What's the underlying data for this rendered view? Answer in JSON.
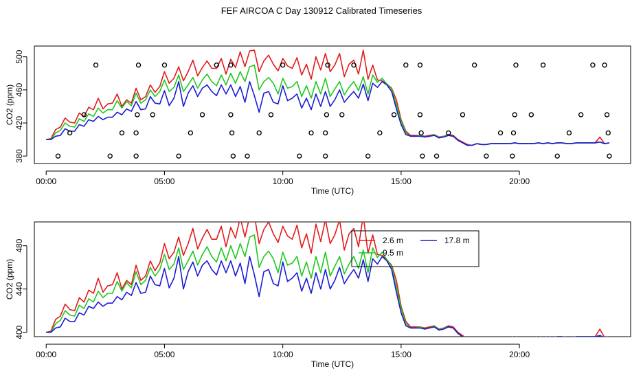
{
  "title": "FEF AIRCOA C  Day 130912  Calibrated Timeseries",
  "colors": {
    "series_2_6": "#e41a1c",
    "series_9_5": "#1ec81e",
    "series_17_8": "#1a1ad6",
    "axis": "#000000"
  },
  "chart_data": [
    {
      "type": "line",
      "panel": "top",
      "xlabel": "Time (UTC)",
      "ylabel": "CO2 (ppm)",
      "xlim": [
        -0.5,
        24.7
      ],
      "ylim": [
        371,
        513
      ],
      "xticks": [
        0,
        5,
        10,
        15,
        20
      ],
      "xtick_labels": [
        "00:00",
        "05:00",
        "10:00",
        "15:00",
        "20:00"
      ],
      "yticks": [
        380,
        420,
        460,
        500
      ],
      "ytick_labels": [
        "380",
        "420",
        "460",
        "500"
      ],
      "series_names": [
        "2.6 m",
        "9.5 m",
        "17.8 m"
      ],
      "flag_levels": [
        380,
        408,
        430,
        490
      ],
      "flags": [
        {
          "x": 0.5,
          "y": 380
        },
        {
          "x": 1.0,
          "y": 408
        },
        {
          "x": 1.6,
          "y": 430
        },
        {
          "x": 2.1,
          "y": 490
        },
        {
          "x": 2.7,
          "y": 380
        },
        {
          "x": 3.2,
          "y": 408
        },
        {
          "x": 3.8,
          "y": 380
        },
        {
          "x": 3.8,
          "y": 408
        },
        {
          "x": 3.85,
          "y": 430
        },
        {
          "x": 3.9,
          "y": 490
        },
        {
          "x": 4.5,
          "y": 430
        },
        {
          "x": 5.0,
          "y": 490
        },
        {
          "x": 5.6,
          "y": 380
        },
        {
          "x": 6.1,
          "y": 408
        },
        {
          "x": 6.6,
          "y": 430
        },
        {
          "x": 7.2,
          "y": 490
        },
        {
          "x": 7.8,
          "y": 490
        },
        {
          "x": 7.8,
          "y": 430
        },
        {
          "x": 7.85,
          "y": 408
        },
        {
          "x": 7.9,
          "y": 380
        },
        {
          "x": 8.5,
          "y": 380
        },
        {
          "x": 9.0,
          "y": 408
        },
        {
          "x": 9.5,
          "y": 430
        },
        {
          "x": 10.0,
          "y": 490
        },
        {
          "x": 10.7,
          "y": 380
        },
        {
          "x": 11.2,
          "y": 408
        },
        {
          "x": 11.8,
          "y": 380
        },
        {
          "x": 11.8,
          "y": 408
        },
        {
          "x": 11.85,
          "y": 430
        },
        {
          "x": 11.9,
          "y": 490
        },
        {
          "x": 12.5,
          "y": 430
        },
        {
          "x": 13.0,
          "y": 490
        },
        {
          "x": 13.6,
          "y": 380
        },
        {
          "x": 14.1,
          "y": 408
        },
        {
          "x": 14.7,
          "y": 430
        },
        {
          "x": 15.2,
          "y": 490
        },
        {
          "x": 15.8,
          "y": 490
        },
        {
          "x": 15.8,
          "y": 430
        },
        {
          "x": 15.85,
          "y": 408
        },
        {
          "x": 15.9,
          "y": 380
        },
        {
          "x": 16.5,
          "y": 380
        },
        {
          "x": 17.0,
          "y": 408
        },
        {
          "x": 17.6,
          "y": 430
        },
        {
          "x": 18.1,
          "y": 490
        },
        {
          "x": 18.6,
          "y": 380
        },
        {
          "x": 19.2,
          "y": 408
        },
        {
          "x": 19.7,
          "y": 380
        },
        {
          "x": 19.75,
          "y": 408
        },
        {
          "x": 19.8,
          "y": 430
        },
        {
          "x": 19.85,
          "y": 490
        },
        {
          "x": 20.5,
          "y": 430
        },
        {
          "x": 21.0,
          "y": 490
        },
        {
          "x": 21.6,
          "y": 380
        },
        {
          "x": 22.1,
          "y": 408
        },
        {
          "x": 22.6,
          "y": 430
        },
        {
          "x": 23.1,
          "y": 490
        },
        {
          "x": 23.6,
          "y": 490
        },
        {
          "x": 23.7,
          "y": 430
        },
        {
          "x": 23.75,
          "y": 408
        },
        {
          "x": 23.8,
          "y": 380
        }
      ]
    },
    {
      "type": "line",
      "panel": "bottom",
      "xlabel": "Time (UTC)",
      "ylabel": "CO2 (ppm)",
      "xlim": [
        -0.5,
        24.7
      ],
      "ylim": [
        396,
        502
      ],
      "xticks": [
        0,
        5,
        10,
        15,
        20
      ],
      "xtick_labels": [
        "00:00",
        "05:00",
        "10:00",
        "15:00",
        "20:00"
      ],
      "yticks": [
        400,
        440,
        480
      ],
      "ytick_labels": [
        "400",
        "440",
        "480"
      ],
      "series_names": [
        "2.6 m",
        "9.5 m",
        "17.8 m"
      ],
      "legend": {
        "placement": "upper-center-right",
        "entries": [
          {
            "label": "2.6 m",
            "series": "series_2_6"
          },
          {
            "label": "9.5 m",
            "series": "series_9_5"
          },
          {
            "label": "17.8 m",
            "series": "series_17_8"
          }
        ]
      }
    }
  ],
  "timeseries": {
    "x": [
      0.0,
      0.2,
      0.4,
      0.6,
      0.8,
      1.0,
      1.2,
      1.4,
      1.6,
      1.8,
      2.0,
      2.2,
      2.4,
      2.6,
      2.8,
      3.0,
      3.2,
      3.4,
      3.6,
      3.8,
      4.0,
      4.2,
      4.4,
      4.6,
      4.8,
      5.0,
      5.2,
      5.4,
      5.6,
      5.8,
      6.0,
      6.2,
      6.4,
      6.6,
      6.8,
      7.0,
      7.2,
      7.4,
      7.6,
      7.8,
      8.0,
      8.2,
      8.4,
      8.6,
      8.8,
      9.0,
      9.2,
      9.4,
      9.6,
      9.8,
      10.0,
      10.2,
      10.4,
      10.6,
      10.8,
      11.0,
      11.2,
      11.4,
      11.6,
      11.8,
      12.0,
      12.2,
      12.4,
      12.6,
      12.8,
      13.0,
      13.2,
      13.4,
      13.6,
      13.8,
      14.0,
      14.2,
      14.4,
      14.6,
      14.8,
      15.0,
      15.2,
      15.4,
      15.6,
      15.8,
      16.0,
      16.2,
      16.4,
      16.6,
      16.8,
      17.0,
      17.2,
      17.4,
      17.6,
      17.8,
      18.0,
      18.2,
      18.4,
      18.6,
      18.8,
      19.0,
      19.2,
      19.4,
      19.6,
      19.8,
      20.0,
      20.2,
      20.4,
      20.6,
      20.8,
      21.0,
      21.2,
      21.4,
      21.6,
      21.8,
      22.0,
      22.2,
      22.4,
      22.6,
      22.8,
      23.0,
      23.2,
      23.4,
      23.6,
      23.8
    ],
    "series_2_6": [
      400,
      401,
      412,
      415,
      426,
      421,
      420,
      432,
      428,
      439,
      436,
      450,
      437,
      443,
      444,
      455,
      440,
      448,
      444,
      462,
      448,
      452,
      466,
      457,
      464,
      482,
      468,
      474,
      488,
      471,
      482,
      496,
      477,
      487,
      495,
      486,
      486,
      498,
      479,
      497,
      487,
      506,
      488,
      507,
      508,
      482,
      495,
      502,
      491,
      483,
      498,
      489,
      486,
      499,
      478,
      491,
      473,
      500,
      484,
      504,
      482,
      490,
      504,
      476,
      491,
      496,
      479,
      508,
      473,
      490,
      472,
      471,
      467,
      462,
      448,
      424,
      410,
      405,
      405,
      405,
      404,
      405,
      406,
      403,
      404,
      406,
      405,
      400,
      397,
      394,
      393,
      395,
      394,
      394,
      395,
      395,
      395,
      395,
      395,
      396,
      395,
      395,
      395,
      395,
      396,
      395,
      396,
      395,
      396,
      396,
      395,
      395,
      396,
      396,
      396,
      396,
      396,
      403,
      395,
      396
    ],
    "series_9_5": [
      400,
      400,
      408,
      411,
      420,
      416,
      415,
      425,
      422,
      431,
      428,
      438,
      432,
      436,
      436,
      447,
      438,
      446,
      441,
      456,
      444,
      448,
      460,
      452,
      458,
      472,
      458,
      463,
      478,
      458,
      466,
      475,
      462,
      472,
      479,
      470,
      465,
      478,
      466,
      480,
      468,
      482,
      470,
      488,
      490,
      460,
      470,
      475,
      468,
      455,
      474,
      462,
      464,
      470,
      452,
      465,
      450,
      470,
      455,
      474,
      452,
      461,
      470,
      454,
      463,
      470,
      459,
      476,
      455,
      478,
      469,
      474,
      467,
      461,
      442,
      422,
      408,
      404,
      404,
      405,
      403,
      404,
      406,
      402,
      404,
      405,
      404,
      399,
      396,
      393,
      393,
      395,
      394,
      394,
      395,
      395,
      395,
      395,
      395,
      396,
      395,
      395,
      395,
      395,
      396,
      395,
      396,
      395,
      396,
      396,
      395,
      395,
      396,
      396,
      396,
      396,
      396,
      397,
      395,
      396
    ],
    "series_17_8": [
      400,
      400,
      404,
      405,
      413,
      410,
      410,
      418,
      416,
      424,
      422,
      428,
      424,
      427,
      427,
      433,
      430,
      437,
      434,
      446,
      436,
      437,
      452,
      444,
      443,
      459,
      441,
      450,
      470,
      440,
      456,
      465,
      452,
      462,
      466,
      458,
      453,
      466,
      455,
      466,
      452,
      464,
      445,
      470,
      453,
      433,
      456,
      458,
      445,
      443,
      465,
      447,
      450,
      455,
      438,
      450,
      436,
      455,
      440,
      458,
      440,
      448,
      460,
      445,
      452,
      458,
      450,
      467,
      447,
      468,
      463,
      470,
      466,
      458,
      437,
      418,
      406,
      404,
      404,
      404,
      403,
      404,
      405,
      402,
      403,
      405,
      404,
      399,
      396,
      393,
      393,
      395,
      394,
      394,
      395,
      395,
      395,
      395,
      395,
      396,
      395,
      395,
      395,
      395,
      396,
      395,
      396,
      395,
      396,
      396,
      395,
      395,
      396,
      396,
      396,
      396,
      396,
      397,
      395,
      396
    ]
  }
}
